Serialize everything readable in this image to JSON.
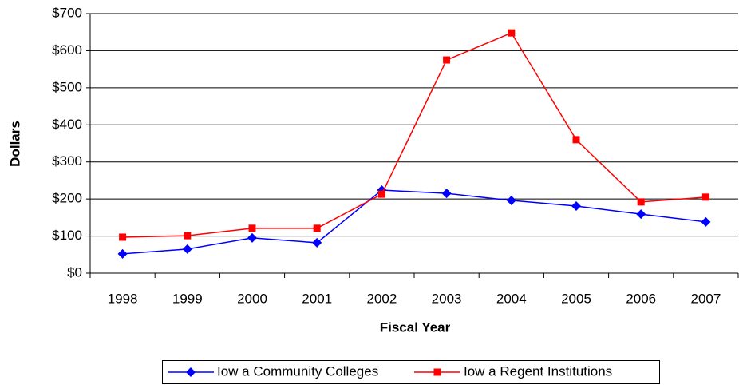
{
  "chart_data": {
    "type": "line",
    "y_label": "Dollars",
    "x_label": "Fiscal Year",
    "categories": [
      "1998",
      "1999",
      "2000",
      "2001",
      "2002",
      "2003",
      "2004",
      "2005",
      "2006",
      "2007"
    ],
    "series": [
      {
        "name": "Iow a Community Colleges",
        "color": "#0000ff",
        "marker": "diamond",
        "values": [
          52,
          65,
          95,
          82,
          224,
          215,
          196,
          181,
          159,
          138
        ]
      },
      {
        "name": "Iow a Regent Institutions",
        "color": "#ff0000",
        "marker": "square",
        "values": [
          97,
          101,
          121,
          121,
          213,
          575,
          648,
          360,
          192,
          205
        ]
      }
    ],
    "ylim": [
      0,
      700
    ],
    "yticks": [
      {
        "value": 0,
        "label": "$0"
      },
      {
        "value": 100,
        "label": "$100"
      },
      {
        "value": 200,
        "label": "$200"
      },
      {
        "value": 300,
        "label": "$300"
      },
      {
        "value": 400,
        "label": "$400"
      },
      {
        "value": 500,
        "label": "$500"
      },
      {
        "value": 600,
        "label": "$600"
      },
      {
        "value": 700,
        "label": "$700"
      }
    ],
    "grid": true,
    "legend": "bottom"
  }
}
